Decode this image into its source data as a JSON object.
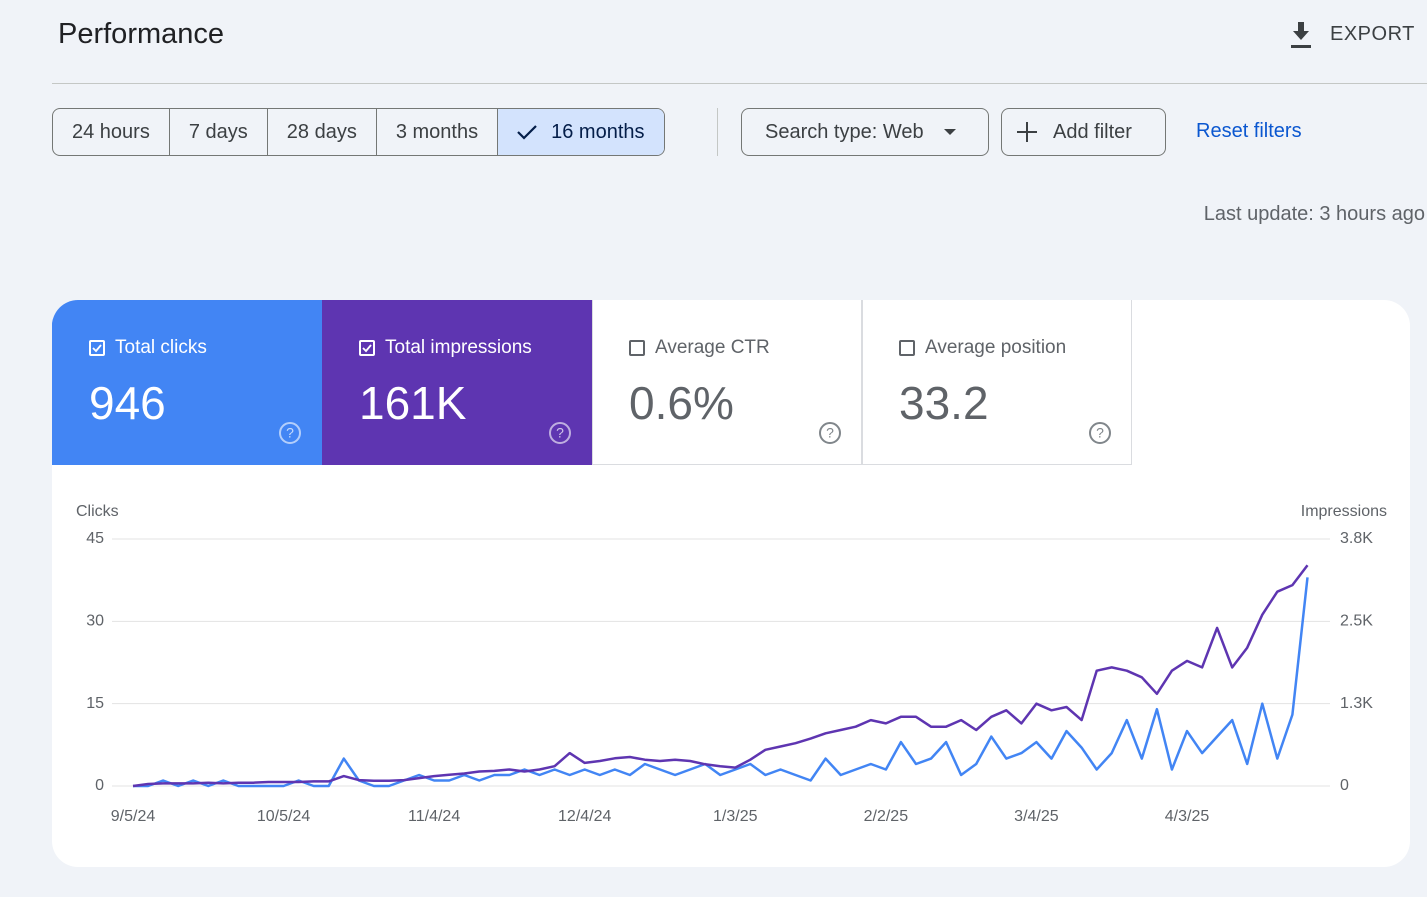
{
  "header": {
    "title": "Performance",
    "export": "EXPORT"
  },
  "date_ranges": {
    "options": [
      "24 hours",
      "7 days",
      "28 days",
      "3 months",
      "16 months"
    ],
    "selected": 4
  },
  "filters": {
    "search_type": "Search type: Web",
    "add_filter": "Add filter",
    "reset": "Reset filters"
  },
  "last_update": "Last update: 3 hours ago",
  "metrics": [
    {
      "label": "Total clicks",
      "value": "946",
      "checked": true,
      "color": "#4285f4"
    },
    {
      "label": "Total impressions",
      "value": "161K",
      "checked": true,
      "color": "#5e35b1"
    },
    {
      "label": "Average CTR",
      "value": "0.6%",
      "checked": false
    },
    {
      "label": "Average position",
      "value": "33.2",
      "checked": false
    }
  ],
  "chart_data": {
    "type": "line",
    "x": [
      "9/5/24",
      "9/8/24",
      "9/11/24",
      "9/14/24",
      "9/17/24",
      "9/20/24",
      "9/23/24",
      "9/26/24",
      "9/29/24",
      "10/2/24",
      "10/5/24",
      "10/8/24",
      "10/11/24",
      "10/14/24",
      "10/17/24",
      "10/20/24",
      "10/23/24",
      "10/26/24",
      "10/29/24",
      "11/1/24",
      "11/4/24",
      "11/7/24",
      "11/10/24",
      "11/13/24",
      "11/16/24",
      "11/19/24",
      "11/22/24",
      "11/25/24",
      "11/28/24",
      "12/1/24",
      "12/4/24",
      "12/7/24",
      "12/10/24",
      "12/13/24",
      "12/16/24",
      "12/19/24",
      "12/22/24",
      "12/25/24",
      "12/28/24",
      "12/31/24",
      "1/3/25",
      "1/6/25",
      "1/9/25",
      "1/12/25",
      "1/15/25",
      "1/18/25",
      "1/21/25",
      "1/24/25",
      "1/27/25",
      "1/30/25",
      "2/2/25",
      "2/5/25",
      "2/8/25",
      "2/11/25",
      "2/14/25",
      "2/17/25",
      "2/20/25",
      "2/23/25",
      "2/26/25",
      "3/1/25",
      "3/4/25",
      "3/7/25",
      "3/10/25",
      "3/13/25",
      "3/16/25",
      "3/19/25",
      "3/22/25",
      "3/25/25",
      "3/28/25",
      "3/31/25",
      "4/3/25",
      "4/6/25",
      "4/9/25",
      "4/12/25",
      "4/15/25",
      "4/18/25",
      "4/21/25",
      "4/24/25",
      "4/27/25"
    ],
    "xticks": [
      "9/5/24",
      "10/5/24",
      "11/4/24",
      "12/4/24",
      "1/3/25",
      "2/2/25",
      "3/4/25",
      "4/3/25"
    ],
    "ylim": [
      0,
      45
    ],
    "yticks": [
      0,
      15,
      30,
      45
    ],
    "y2lim": [
      0,
      3750
    ],
    "y2ticks": [
      0,
      {
        "value": 1250,
        "label": "1.3K"
      },
      {
        "value": 2500,
        "label": "2.5K"
      },
      {
        "value": 3750,
        "label": "3.8K"
      }
    ],
    "grid": true,
    "series": [
      {
        "name": "Clicks",
        "color": "#4285f4",
        "values": [
          0,
          0,
          1,
          0,
          1,
          0,
          1,
          0,
          0,
          0,
          0,
          1,
          0,
          0,
          5,
          1,
          0,
          0,
          1,
          2,
          1,
          1,
          2,
          1,
          2,
          2,
          3,
          2,
          3,
          2,
          3,
          2,
          3,
          2,
          4,
          3,
          2,
          3,
          4,
          2,
          3,
          4,
          2,
          3,
          2,
          1,
          5,
          2,
          3,
          4,
          3,
          8,
          4,
          5,
          8,
          2,
          4,
          9,
          5,
          6,
          8,
          5,
          10,
          7,
          3,
          6,
          12,
          5,
          14,
          3,
          10,
          6,
          9,
          12,
          4,
          15,
          5,
          13,
          38
        ]
      },
      {
        "name": "Impressions",
        "color": "#5e35b1",
        "axis": "y2",
        "values": [
          0,
          30,
          40,
          40,
          40,
          50,
          40,
          50,
          50,
          60,
          60,
          60,
          70,
          70,
          150,
          90,
          80,
          80,
          90,
          120,
          150,
          170,
          190,
          220,
          230,
          250,
          220,
          250,
          300,
          500,
          350,
          380,
          420,
          440,
          400,
          380,
          400,
          380,
          330,
          300,
          280,
          400,
          550,
          600,
          650,
          720,
          800,
          850,
          900,
          1000,
          950,
          1050,
          1050,
          900,
          900,
          1000,
          850,
          1050,
          1150,
          950,
          1250,
          1150,
          1200,
          1000,
          1750,
          1800,
          1750,
          1650,
          1400,
          1750,
          1900,
          1800,
          2400,
          1800,
          2100,
          2600,
          2950,
          3050,
          3350
        ]
      }
    ]
  }
}
